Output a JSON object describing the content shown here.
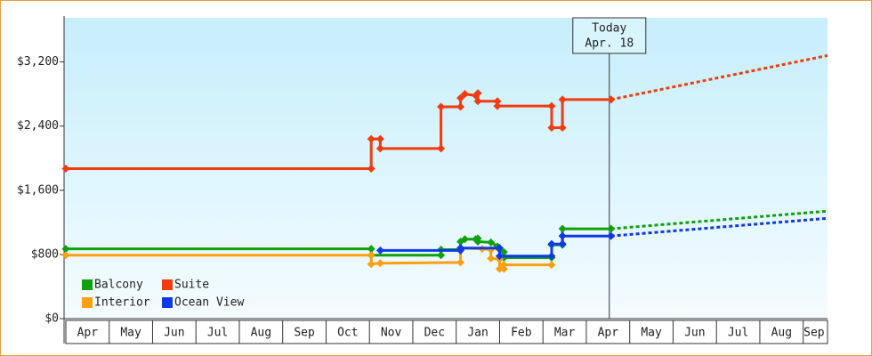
{
  "chart_data": {
    "type": "step-line",
    "xlim": [
      -0.04,
      17.56
    ],
    "xticks": [
      {
        "value": 0.5,
        "label": "Apr"
      },
      {
        "value": 1.5,
        "label": "May"
      },
      {
        "value": 2.5,
        "label": "Jun"
      },
      {
        "value": 3.5,
        "label": "Jul"
      },
      {
        "value": 4.5,
        "label": "Aug"
      },
      {
        "value": 5.5,
        "label": "Sep"
      },
      {
        "value": 6.5,
        "label": "Oct"
      },
      {
        "value": 7.5,
        "label": "Nov"
      },
      {
        "value": 8.5,
        "label": "Dec"
      },
      {
        "value": 9.5,
        "label": "Jan"
      },
      {
        "value": 10.5,
        "label": "Feb"
      },
      {
        "value": 11.5,
        "label": "Mar"
      },
      {
        "value": 12.5,
        "label": "Apr"
      },
      {
        "value": 13.5,
        "label": "May"
      },
      {
        "value": 14.5,
        "label": "Jun"
      },
      {
        "value": 15.5,
        "label": "Jul"
      },
      {
        "value": 16.5,
        "label": "Aug"
      },
      {
        "value": 17.25,
        "label": "Sep"
      }
    ],
    "ylim": [
      0,
      3750
    ],
    "yticks": [
      {
        "value": 0,
        "label": "$0"
      },
      {
        "value": 800,
        "label": "$800"
      },
      {
        "value": 1600,
        "label": "$1,600"
      },
      {
        "value": 2400,
        "label": "$2,400"
      },
      {
        "value": 3200,
        "label": "$3,200"
      }
    ],
    "legend": "lower left",
    "today": {
      "x": 12.53,
      "label": [
        "Today",
        "Apr. 18"
      ]
    },
    "series": [
      {
        "name": "Balcony",
        "color": "#10a010",
        "x": [
          0,
          7.04,
          7.04,
          8.65,
          8.65,
          9.1,
          9.1,
          9.2,
          9.45,
          9.5,
          9.5,
          9.8,
          9.95,
          10.0,
          10.1,
          10.1,
          11.2,
          11.2,
          11.45,
          11.45,
          12.57
        ],
        "values": [
          870,
          870,
          790,
          790,
          860,
          860,
          960,
          990,
          990,
          1000,
          960,
          950,
          900,
          860,
          830,
          760,
          760,
          920,
          920,
          1120,
          1120
        ],
        "projection": {
          "x": [
            12.57,
            17.56
          ],
          "values": [
            1120,
            1340
          ]
        }
      },
      {
        "name": "Suite",
        "color": "#f03c10",
        "x": [
          0,
          7.04,
          7.04,
          7.25,
          7.25,
          8.65,
          8.65,
          9.1,
          9.1,
          9.2,
          9.45,
          9.5,
          9.5,
          9.95,
          9.95,
          11.2,
          11.2,
          11.45,
          11.45,
          12.57
        ],
        "values": [
          1870,
          1870,
          2240,
          2240,
          2120,
          2120,
          2640,
          2640,
          2750,
          2800,
          2780,
          2810,
          2710,
          2710,
          2650,
          2650,
          2380,
          2380,
          2730,
          2730
        ],
        "projection": {
          "x": [
            12.57,
            17.56
          ],
          "values": [
            2730,
            3280
          ]
        }
      },
      {
        "name": "Interior",
        "color": "#f8a010",
        "x": [
          0,
          7.04,
          7.04,
          7.25,
          9.1,
          9.1,
          9.6,
          9.8,
          9.8,
          10.0,
          10.0,
          10.1,
          10.1,
          11.2
        ],
        "values": [
          790,
          790,
          680,
          690,
          700,
          880,
          870,
          860,
          750,
          740,
          620,
          620,
          670,
          670
        ]
      },
      {
        "name": "Ocean View",
        "color": "#1038e8",
        "x": [
          7.25,
          9.1,
          9.1,
          10.0,
          10.0,
          11.2,
          11.2,
          11.45,
          11.45,
          12.57
        ],
        "values": [
          850,
          850,
          880,
          880,
          780,
          780,
          930,
          930,
          1030,
          1030
        ],
        "projection": {
          "x": [
            12.57,
            17.56
          ],
          "values": [
            1030,
            1250
          ]
        }
      }
    ]
  }
}
